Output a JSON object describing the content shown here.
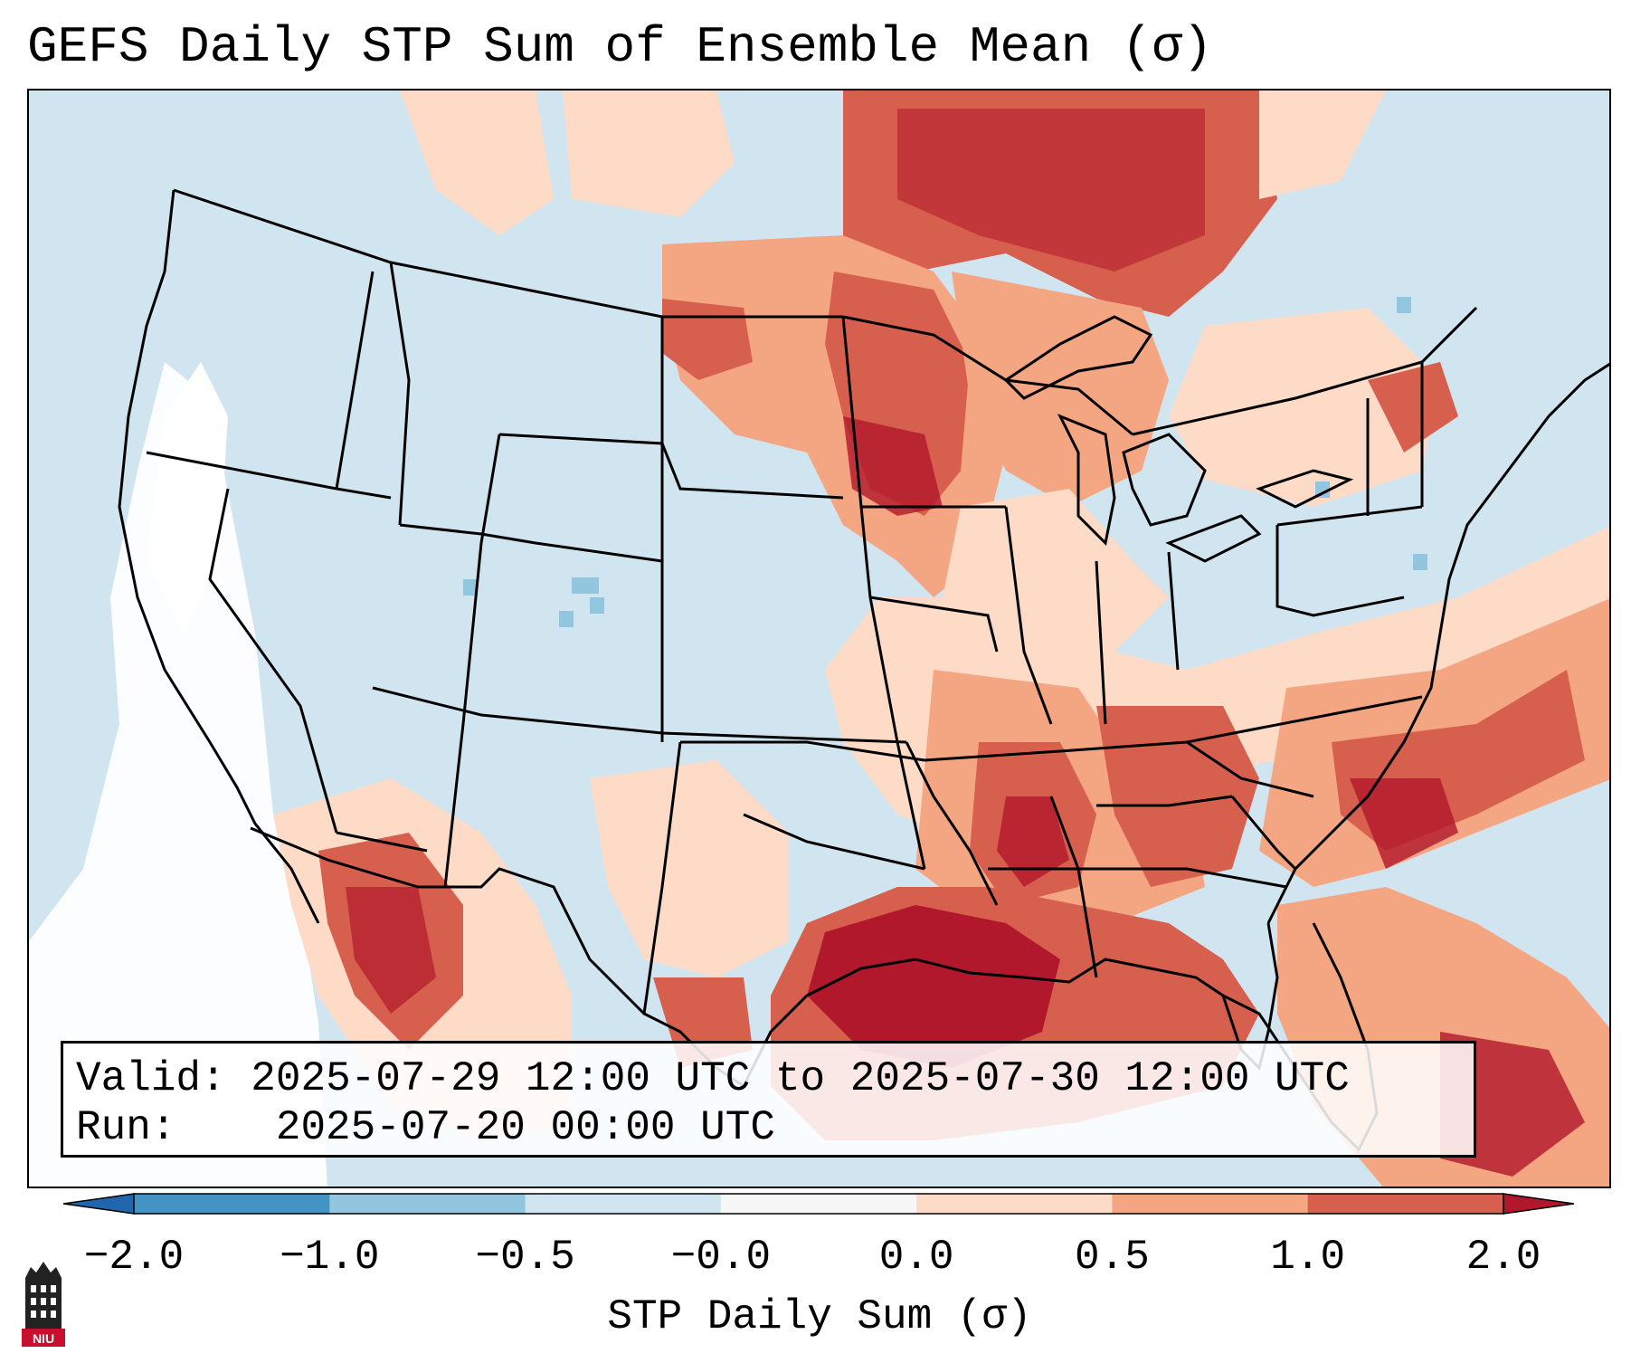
{
  "title": "GEFS Daily STP Sum of Ensemble Mean (σ)",
  "info": {
    "valid_label": "Valid:",
    "valid_value": "2025-07-29 12:00 UTC to 2025-07-30 12:00 UTC",
    "run_label": "Run:",
    "run_value": "2025-07-20 00:00 UTC"
  },
  "colorbar": {
    "label": "STP Daily Sum (σ)",
    "ticks": [
      "−2.0",
      "−1.0",
      "−0.5",
      "−0.0",
      "0.0",
      "0.5",
      "1.0",
      "2.0"
    ],
    "bins": [
      {
        "range": "< -2.0",
        "color": "#2166ac"
      },
      {
        "range": "-2.0 to -1.0",
        "color": "#4393c3"
      },
      {
        "range": "-1.0 to -0.5",
        "color": "#92c5de"
      },
      {
        "range": "-0.5 to -0.0",
        "color": "#d1e5f0"
      },
      {
        "range": "-0.0 to 0.0",
        "color": "#f7f7f7"
      },
      {
        "range": "0.0 to 0.5",
        "color": "#fddbc7"
      },
      {
        "range": "0.5 to 1.0",
        "color": "#f4a582"
      },
      {
        "range": "1.0 to 2.0",
        "color": "#d6604d"
      },
      {
        "range": "> 2.0",
        "color": "#b2182b"
      }
    ]
  },
  "map": {
    "region": "Contiguous United States",
    "ocean_color": "#d1e5f0",
    "no_data_color": "#ffffff",
    "land_color": "#d1e5f0"
  },
  "logo": {
    "text": "NIU"
  }
}
